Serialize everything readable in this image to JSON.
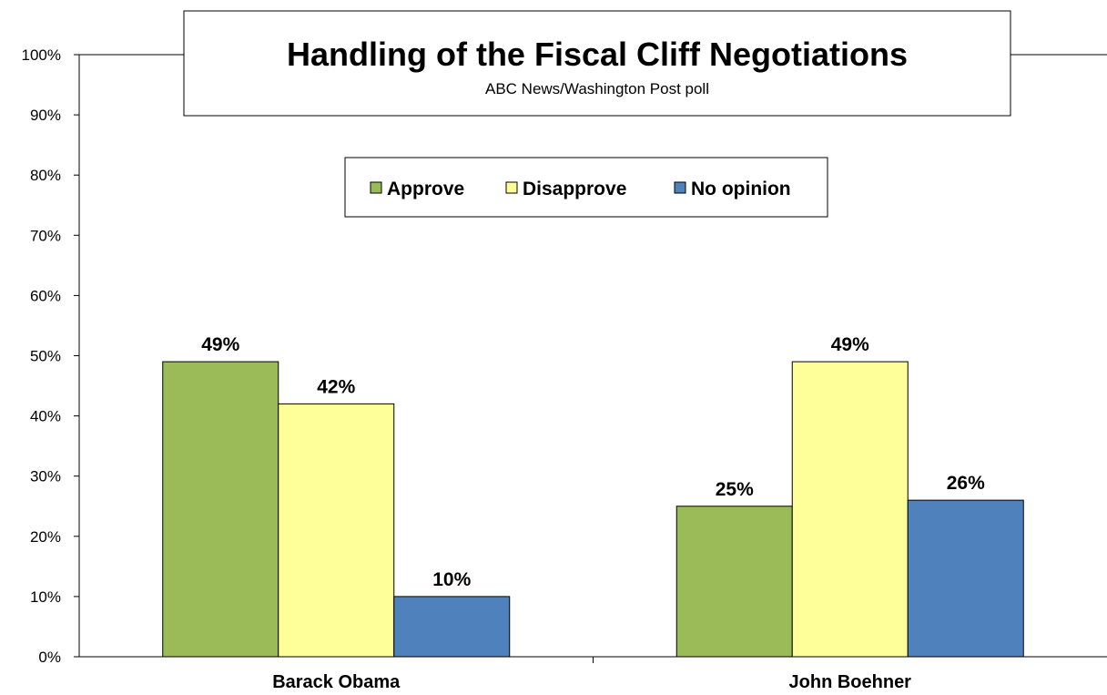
{
  "chart_data": {
    "type": "bar",
    "title": "Handling of the Fiscal Cliff Negotiations",
    "subtitle": "ABC News/Washington Post poll",
    "categories": [
      "Barack Obama",
      "John Boehner"
    ],
    "series": [
      {
        "name": "Approve",
        "values": [
          49,
          25
        ],
        "color": "#9BBB59"
      },
      {
        "name": "Disapprove",
        "values": [
          42,
          49
        ],
        "color": "#FFFF99"
      },
      {
        "name": "No opinion",
        "values": [
          10,
          26
        ],
        "color": "#4F81BD"
      }
    ],
    "value_suffix": "%",
    "ylim": [
      0,
      100
    ],
    "yticks": [
      "0%",
      "10%",
      "20%",
      "30%",
      "40%",
      "50%",
      "60%",
      "70%",
      "80%",
      "90%",
      "100%"
    ],
    "gridlines": false,
    "legend_position": "top-center",
    "xlabel": "",
    "ylabel": ""
  }
}
